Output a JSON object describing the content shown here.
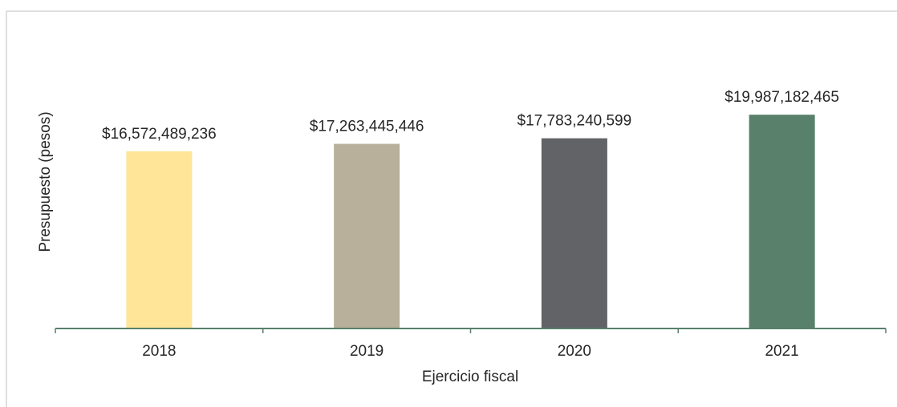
{
  "chart_data": {
    "type": "bar",
    "categories": [
      "2018",
      "2019",
      "2020",
      "2021"
    ],
    "values": [
      16572489236,
      17263445446,
      17783240599,
      19987182465
    ],
    "data_labels": [
      "$16,572,489,236",
      "$17,263,445,446",
      "$17,783,240,599",
      "$19,987,182,465"
    ],
    "colors": [
      "#FEE598",
      "#B8B09B",
      "#626366",
      "#58806B"
    ],
    "axis_color": "#58806B",
    "xlabel": "Ejercicio fiscal",
    "ylabel": "Presupuesto (pesos)",
    "ylim": [
      0,
      24000000000
    ],
    "grid": false,
    "legend": "none"
  }
}
